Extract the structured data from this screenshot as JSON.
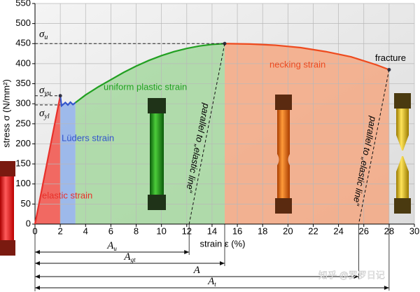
{
  "chart_data": {
    "type": "line",
    "y_label": "stress σ (N/mm²)",
    "x_label": "strain ε (%)",
    "xlim": [
      0,
      30
    ],
    "ylim": [
      0,
      550
    ],
    "xticks": [
      0,
      2,
      4,
      6,
      8,
      10,
      12,
      14,
      16,
      18,
      20,
      22,
      24,
      26,
      28,
      30
    ],
    "yticks": [
      0,
      50,
      100,
      150,
      200,
      250,
      300,
      350,
      400,
      450,
      500,
      550
    ],
    "grid": true,
    "series": [
      {
        "name": "elastic strain",
        "color": "#e8302a",
        "fill": "#f2524a",
        "x": [
          0,
          2
        ],
        "y": [
          0,
          320
        ]
      },
      {
        "name": "Lüders strain",
        "color": "#3355cc",
        "fill": "#8fb0ea",
        "x": [
          2,
          2.1,
          2.4,
          2.6,
          2.8,
          3.0,
          3.2
        ],
        "y": [
          320,
          295,
          303,
          297,
          304,
          298,
          303
        ]
      },
      {
        "name": "uniform plastic strain",
        "color": "#22a022",
        "fill": "#a6d8a0",
        "x": [
          3.2,
          4,
          5,
          6,
          7,
          8,
          9,
          10,
          11,
          12,
          13,
          14,
          15
        ],
        "y": [
          303,
          322,
          342,
          360,
          378,
          394,
          408,
          420,
          430,
          438,
          444,
          448,
          450
        ]
      },
      {
        "name": "necking strain",
        "color": "#ee4a1e",
        "fill": "#f4a882",
        "x": [
          15,
          17,
          19,
          21,
          23,
          25,
          27,
          28
        ],
        "y": [
          450,
          449,
          446,
          440,
          430,
          417,
          397,
          385
        ]
      }
    ],
    "stress_marks": [
      {
        "symbol": "σ",
        "sub": "u",
        "value": 450
      },
      {
        "symbol": "σ",
        "sub": "yu",
        "value": 320
      },
      {
        "symbol": "σ",
        "sub": "yl",
        "value": 297
      }
    ],
    "fracture_label": "fracture",
    "parallel_labels": [
      "parallel to „elastic line“",
      "parallel to „elastic line“"
    ],
    "dimensions": [
      {
        "symbol": "A",
        "sub": "u"
      },
      {
        "symbol": "A",
        "sub": "gt"
      },
      {
        "symbol": "A",
        "sub": ""
      },
      {
        "symbol": "A",
        "sub": "t"
      }
    ],
    "watermark": "知乎 @罗罗日记"
  }
}
